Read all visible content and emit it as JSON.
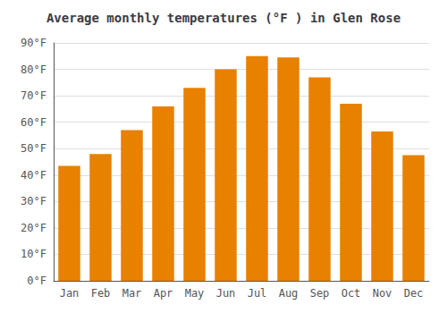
{
  "chart_data": {
    "type": "bar",
    "title": "Average monthly temperatures (°F ) in Glen Rose",
    "categories": [
      "Jan",
      "Feb",
      "Mar",
      "Apr",
      "May",
      "Jun",
      "Jul",
      "Aug",
      "Sep",
      "Oct",
      "Nov",
      "Dec"
    ],
    "values": [
      43.5,
      48.0,
      57.0,
      66.0,
      73.0,
      80.0,
      85.0,
      84.5,
      77.0,
      67.0,
      56.5,
      47.5
    ],
    "color": "#E88000",
    "ylim": [
      0,
      90
    ],
    "yticks": [
      {
        "value": 0,
        "label": "0°F"
      },
      {
        "value": 10,
        "label": "10°F"
      },
      {
        "value": 20,
        "label": "20°F"
      },
      {
        "value": 30,
        "label": "30°F"
      },
      {
        "value": 40,
        "label": "40°F"
      },
      {
        "value": 50,
        "label": "50°F"
      },
      {
        "value": 60,
        "label": "60°F"
      },
      {
        "value": 70,
        "label": "70°F"
      },
      {
        "value": 80,
        "label": "80°F"
      },
      {
        "value": 90,
        "label": "90°F"
      }
    ],
    "grid": true
  }
}
